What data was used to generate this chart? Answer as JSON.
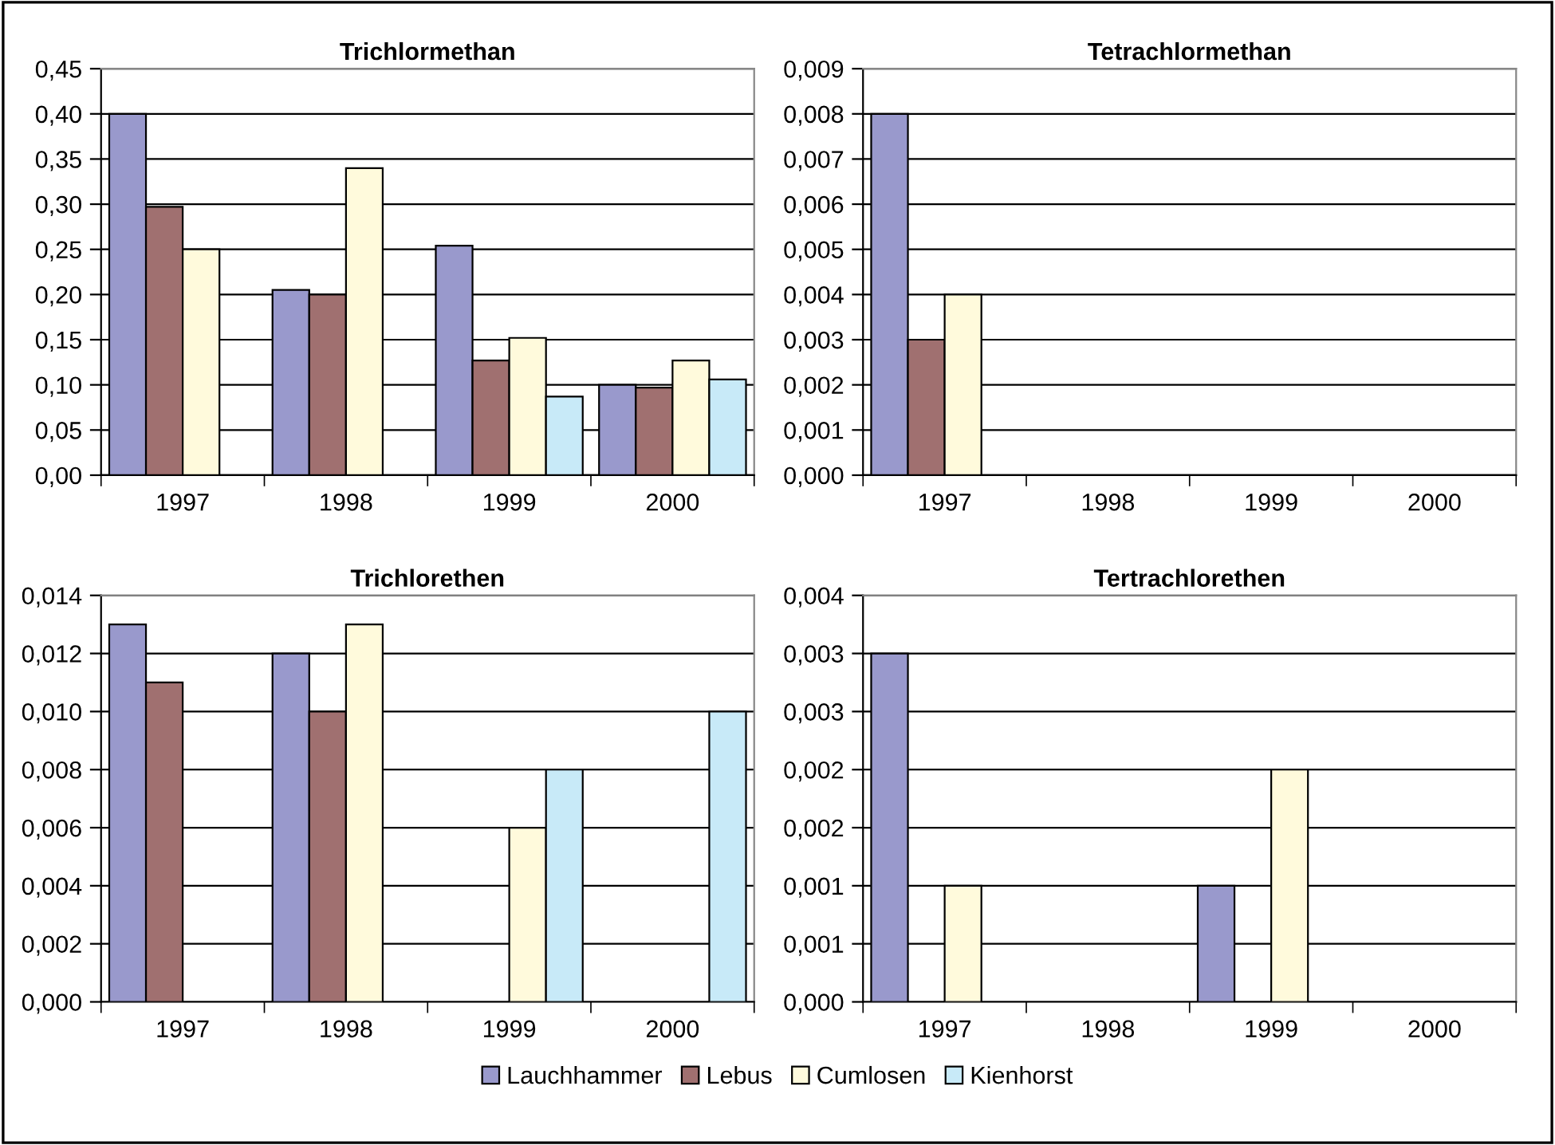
{
  "chart_data": [
    {
      "type": "bar",
      "title": "Trichlormethan",
      "categories": [
        "1997",
        "1998",
        "1999",
        "2000"
      ],
      "ylim": [
        0,
        0.45
      ],
      "yticks": [
        {
          "value": 0,
          "label": "0,00"
        },
        {
          "value": 0.05,
          "label": "0,05"
        },
        {
          "value": 0.1,
          "label": "0,10"
        },
        {
          "value": 0.15,
          "label": "0,15"
        },
        {
          "value": 0.2,
          "label": "0,20"
        },
        {
          "value": 0.25,
          "label": "0,25"
        },
        {
          "value": 0.3,
          "label": "0,30"
        },
        {
          "value": 0.35,
          "label": "0,35"
        },
        {
          "value": 0.4,
          "label": "0,40"
        },
        {
          "value": 0.45,
          "label": "0,45"
        }
      ],
      "grid": "y",
      "legend": "bottom",
      "series": [
        {
          "name": "Lauchhammer",
          "color": "#9999cc",
          "values": [
            0.4,
            0.205,
            0.254,
            0.1
          ]
        },
        {
          "name": "Lebus",
          "color": "#a07070",
          "values": [
            0.297,
            0.2,
            0.127,
            0.097
          ]
        },
        {
          "name": "Cumlosen",
          "color": "#fffadc",
          "values": [
            0.25,
            0.34,
            0.152,
            0.127
          ]
        },
        {
          "name": "Kienhorst",
          "color": "#c8eaf8",
          "values": [
            null,
            null,
            0.087,
            0.106
          ]
        }
      ]
    },
    {
      "type": "bar",
      "title": "Tetrachlormethan",
      "categories": [
        "1997",
        "1998",
        "1999",
        "2000"
      ],
      "ylim": [
        0,
        0.009
      ],
      "yticks": [
        {
          "value": 0,
          "label": "0,000"
        },
        {
          "value": 0.001,
          "label": "0,001"
        },
        {
          "value": 0.002,
          "label": "0,002"
        },
        {
          "value": 0.003,
          "label": "0,003"
        },
        {
          "value": 0.004,
          "label": "0,004"
        },
        {
          "value": 0.005,
          "label": "0,005"
        },
        {
          "value": 0.006,
          "label": "0,006"
        },
        {
          "value": 0.007,
          "label": "0,007"
        },
        {
          "value": 0.008,
          "label": "0,008"
        },
        {
          "value": 0.009,
          "label": "0,009"
        }
      ],
      "grid": "y",
      "series": [
        {
          "color": "#9999cc",
          "values": [
            0.008,
            null,
            null,
            null
          ]
        },
        {
          "color": "#a07070",
          "values": [
            0.003,
            null,
            null,
            null
          ]
        },
        {
          "color": "#fffadc",
          "values": [
            0.004,
            null,
            null,
            null
          ]
        },
        {
          "values": [
            null,
            null,
            null,
            null
          ]
        }
      ]
    },
    {
      "type": "bar",
      "title": "Trichlorethen",
      "categories": [
        "1997",
        "1998",
        "1999",
        "2000"
      ],
      "ylim": [
        0,
        0.014
      ],
      "yticks": [
        {
          "value": 0,
          "label": "0,000"
        },
        {
          "value": 0.002,
          "label": "0,002"
        },
        {
          "value": 0.004,
          "label": "0,004"
        },
        {
          "value": 0.006,
          "label": "0,006"
        },
        {
          "value": 0.008,
          "label": "0,008"
        },
        {
          "value": 0.01,
          "label": "0,010"
        },
        {
          "value": 0.012,
          "label": "0,012"
        },
        {
          "value": 0.014,
          "label": "0,014"
        }
      ],
      "grid": "y",
      "series": [
        {
          "color": "#9999cc",
          "values": [
            0.013,
            0.012,
            null,
            null
          ]
        },
        {
          "color": "#a07070",
          "values": [
            0.011,
            0.01,
            null,
            null
          ]
        },
        {
          "color": "#fffadc",
          "values": [
            null,
            0.013,
            0.006,
            null
          ]
        },
        {
          "color": "#c8eaf8",
          "values": [
            null,
            null,
            0.008,
            0.01
          ]
        }
      ]
    },
    {
      "type": "bar",
      "title": "Tertrachlorethen",
      "categories": [
        "1997",
        "1998",
        "1999",
        "2000"
      ],
      "ylim": [
        0,
        0.0035
      ],
      "yticks": [
        {
          "value": 0,
          "label": "0,000"
        },
        {
          "value": 0.0005,
          "label": "0,001"
        },
        {
          "value": 0.001,
          "label": "0,001"
        },
        {
          "value": 0.0015,
          "label": "0,002"
        },
        {
          "value": 0.002,
          "label": "0,002"
        },
        {
          "value": 0.0025,
          "label": "0,003"
        },
        {
          "value": 0.003,
          "label": "0,003"
        },
        {
          "value": 0.0035,
          "label": "0,004"
        }
      ],
      "grid": "y",
      "series": [
        {
          "color": "#9999cc",
          "values": [
            0.003,
            null,
            0.001,
            null
          ]
        },
        {
          "values": [
            null,
            null,
            null,
            null
          ]
        },
        {
          "color": "#fffadc",
          "values": [
            0.001,
            null,
            0.002,
            null
          ]
        },
        {
          "values": [
            null,
            null,
            null,
            null
          ]
        }
      ]
    }
  ]
}
